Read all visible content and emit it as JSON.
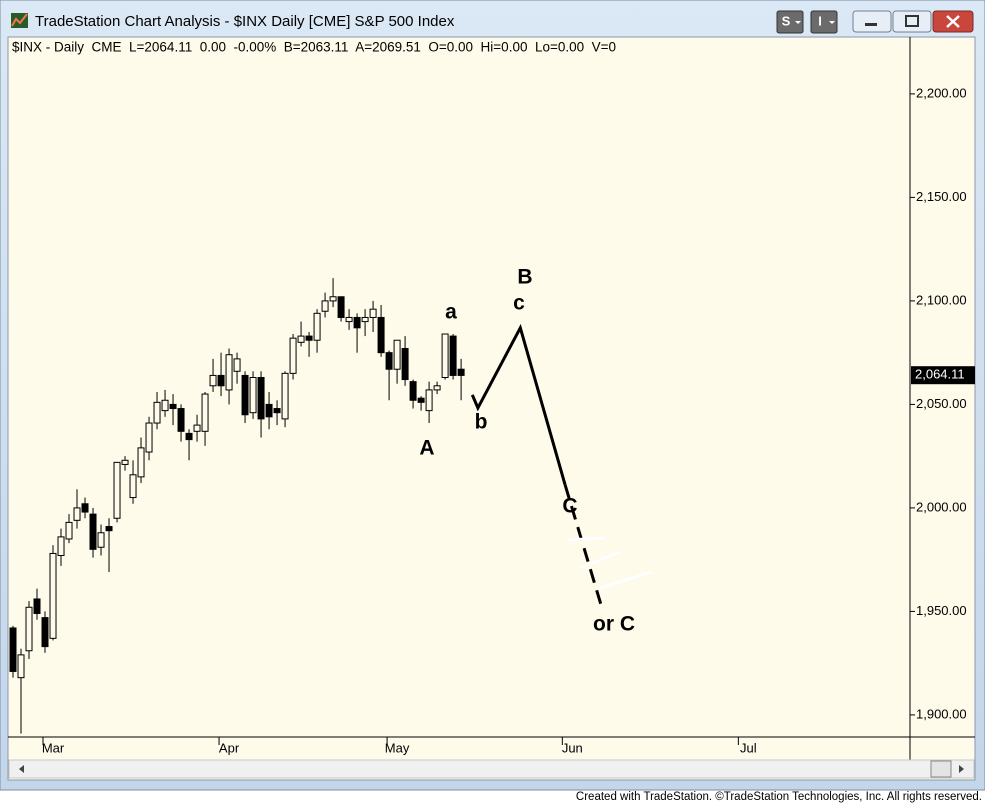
{
  "window": {
    "title": "TradeStation Chart Analysis - $INX Daily [CME] S&P 500 Index",
    "buttons": [
      "S",
      "I"
    ]
  },
  "footer": "Created with TradeStation. ©TradeStation Technologies, Inc. All rights reserved.",
  "chart_data": {
    "type": "candlestick",
    "info": "$INX - Daily  CME  L=2064.11  0.00  -0.00%  B=2063.11  A=2069.51  O=0.00  Hi=0.00  Lo=0.00  V=0",
    "x": [
      0,
      1,
      2,
      3,
      4,
      5,
      6,
      7,
      8,
      9,
      10,
      11,
      12,
      13,
      14,
      15,
      16,
      17,
      18,
      19,
      20,
      21,
      22,
      23,
      24,
      25,
      26,
      27,
      28,
      29,
      30,
      31,
      32,
      33,
      34,
      35,
      36,
      37,
      38,
      39,
      40,
      41,
      42,
      43,
      44,
      45,
      46,
      47,
      48,
      49,
      50,
      51,
      52,
      53,
      54,
      55,
      56
    ],
    "open": [
      1942,
      1918,
      1931,
      1956,
      1947,
      1937,
      1977,
      1985,
      1994,
      2002,
      1997,
      1981,
      1991,
      1995,
      2021,
      2005,
      2015,
      2027,
      2041,
      2047,
      2050,
      2048,
      2036,
      2037,
      2037,
      2059,
      2064,
      2057,
      2066,
      2064,
      2046,
      2063,
      2050,
      2048,
      2043,
      2065,
      2080,
      2083,
      2081,
      2095,
      2100,
      2102,
      2090,
      2092,
      2090,
      2092,
      2092,
      2075,
      2067,
      2077,
      2061,
      2053,
      2047,
      2057,
      2063,
      2083,
      2067
    ],
    "high": [
      1943,
      1932,
      1955,
      1961,
      1950,
      1982,
      1990,
      1997,
      2009,
      2005,
      2000,
      1992,
      1995,
      2022,
      2025,
      2023,
      2034,
      2044,
      2056,
      2057,
      2055,
      2050,
      2038,
      2045,
      2056,
      2072,
      2075,
      2077,
      2075,
      2066,
      2066,
      2066,
      2056,
      2052,
      2066,
      2084,
      2090,
      2085,
      2096,
      2104,
      2111,
      2102,
      2096,
      2094,
      2096,
      2100,
      2098,
      2076,
      2081,
      2083,
      2062,
      2054,
      2061,
      2061,
      2084,
      2084,
      2072
    ],
    "low": [
      1918,
      1891,
      1927,
      1946,
      1930,
      1936,
      1972,
      1983,
      1990,
      1995,
      1976,
      1977,
      1969,
      1993,
      2018,
      2002,
      2012,
      2023,
      2038,
      2044,
      2040,
      2032,
      2023,
      2032,
      2030,
      2056,
      2054,
      2050,
      2060,
      2041,
      2043,
      2034,
      2038,
      2040,
      2039,
      2062,
      2078,
      2073,
      2075,
      2092,
      2097,
      2090,
      2086,
      2075,
      2083,
      2085,
      2073,
      2052,
      2060,
      2059,
      2048,
      2047,
      2041,
      2055,
      2062,
      2062,
      2052
    ],
    "close": [
      1921,
      1929,
      1952,
      1949,
      1933,
      1978,
      1986,
      1993,
      2000,
      1998,
      1980,
      1988,
      1989,
      2022,
      2023,
      2016,
      2029,
      2041,
      2051,
      2052,
      2048,
      2037,
      2033,
      2040,
      2055,
      2064,
      2059,
      2074,
      2072,
      2045,
      2063,
      2043,
      2044,
      2046,
      2065,
      2082,
      2083,
      2081,
      2094,
      2100,
      2102,
      2092,
      2092,
      2087,
      2092,
      2096,
      2075,
      2067,
      2081,
      2062,
      2052,
      2051,
      2057,
      2059,
      2084,
      2064,
      2064
    ],
    "xlim": [
      -0.375,
      112.1
    ],
    "xticks": [
      {
        "value": 5,
        "label": "Mar"
      },
      {
        "value": 27,
        "label": "Apr"
      },
      {
        "value": 48,
        "label": "May"
      },
      {
        "value": 69.9,
        "label": "Jun"
      },
      {
        "value": 91.9,
        "label": "Jul"
      }
    ],
    "ylim": [
      1890.3,
      2227
    ],
    "yticks": [
      {
        "value": 1900,
        "label": "1,900.00"
      },
      {
        "value": 1950,
        "label": "1,950.00"
      },
      {
        "value": 2000,
        "label": "2,000.00"
      },
      {
        "value": 2050,
        "label": "2,050.00"
      },
      {
        "value": 2100,
        "label": "2,100.00"
      },
      {
        "value": 2150,
        "label": "2,150.00"
      },
      {
        "value": 2200,
        "label": "2,200.00"
      }
    ],
    "last_price": {
      "value": 2064.11,
      "label": "2,064.11"
    },
    "projection": {
      "x": [
        57.4,
        58.1,
        63.4,
        69.0,
        73.6
      ],
      "y": [
        2054.6,
        2048.3,
        2087,
        2011.1,
        1951.7
      ]
    },
    "annotations": [
      "A",
      "a",
      "b",
      "B",
      "c",
      "C",
      "or C"
    ]
  }
}
